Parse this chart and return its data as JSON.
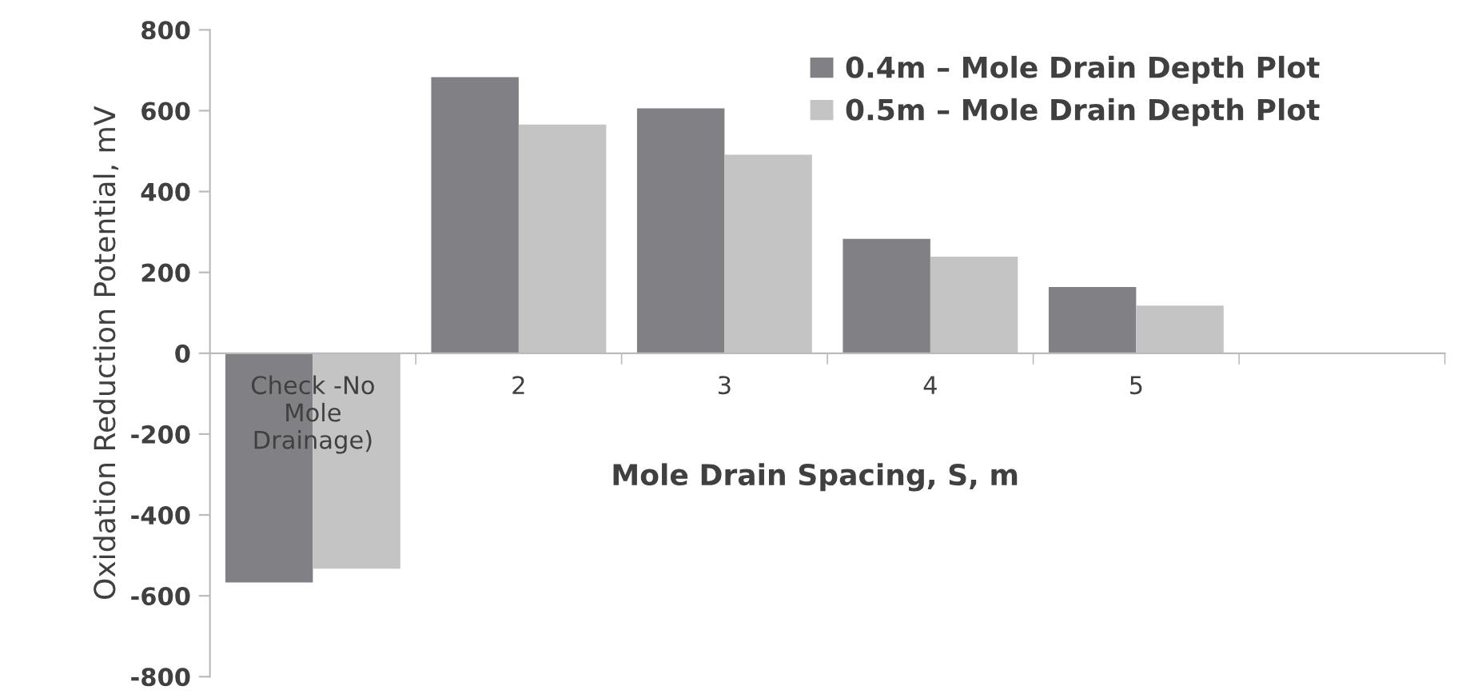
{
  "chart_data": {
    "type": "bar",
    "xlabel": "Mole Drain Spacing, S, m",
    "ylabel": "Oxidation Reduction Potential, mV",
    "categories": [
      "Check -No\nMole\nDrainage)",
      "2",
      "3",
      "4",
      "5",
      null
    ],
    "series": [
      {
        "name": "0.4m – Mole Drain Depth Plot",
        "color": "#808085",
        "values": [
          -567,
          683,
          606,
          283,
          164,
          null
        ]
      },
      {
        "name": "0.5m – Mole Drain Depth Plot",
        "color": "#c4c4c4",
        "values": [
          -533,
          566,
          491,
          239,
          118,
          null
        ]
      }
    ],
    "ylim": [
      -800,
      800
    ],
    "yticks": [
      -800,
      -600,
      -400,
      -200,
      0,
      200,
      400,
      600,
      800
    ],
    "grid": false,
    "legend": "top right"
  }
}
